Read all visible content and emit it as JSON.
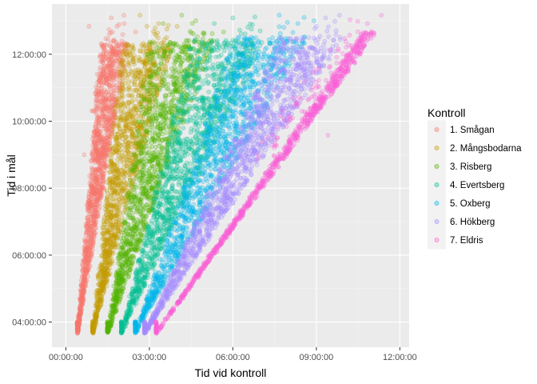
{
  "chart_data": {
    "type": "scatter",
    "xlabel": "Tid vid kontroll",
    "ylabel": "Tid i mål",
    "xlim": [
      "-00:30:00",
      "12:20:00"
    ],
    "ylim": [
      "03:15:00",
      "13:30:00"
    ],
    "x_ticks": [
      "00:00:00",
      "03:00:00",
      "06:00:00",
      "09:00:00",
      "12:00:00"
    ],
    "y_ticks": [
      "04:00:00",
      "06:00:00",
      "08:00:00",
      "10:00:00",
      "12:00:00"
    ],
    "grid": true,
    "point_alpha": 0.25,
    "legend": {
      "title": "Kontroll",
      "position": "right"
    },
    "series": [
      {
        "name": "1. Smågan",
        "color": "#F8766D",
        "start_x": "00:25:00",
        "start_y": "03:40:00",
        "lower_end_x": "01:15:00",
        "upper_end_x": "02:15:00",
        "end_y": "12:20:00",
        "outliers": [
          [
            "01:38:00",
            "13:05:00"
          ],
          [
            "01:50:00",
            "12:50:00"
          ],
          [
            "02:05:00",
            "13:10:00"
          ],
          [
            "02:30:00",
            "12:40:00"
          ],
          [
            "00:50:00",
            "12:50:00"
          ]
        ]
      },
      {
        "name": "2. Mångsbodarna",
        "color": "#C49A00",
        "start_x": "00:58:00",
        "start_y": "03:40:00",
        "lower_end_x": "02:00:00",
        "upper_end_x": "03:50:00",
        "end_y": "12:20:00",
        "outliers": [
          [
            "02:40:00",
            "13:10:00"
          ],
          [
            "03:20:00",
            "12:55:00"
          ],
          [
            "04:00:00",
            "12:50:00"
          ],
          [
            "02:55:00",
            "12:50:00"
          ]
        ]
      },
      {
        "name": "3. Risberg",
        "color": "#53B400",
        "start_x": "01:30:00",
        "start_y": "03:40:00",
        "lower_end_x": "03:00:00",
        "upper_end_x": "05:20:00",
        "end_y": "12:25:00",
        "outliers": [
          [
            "04:10:00",
            "13:10:00"
          ],
          [
            "04:40:00",
            "13:00:00"
          ],
          [
            "05:40:00",
            "12:40:00"
          ],
          [
            "03:30:00",
            "12:55:00"
          ]
        ]
      },
      {
        "name": "4. Evertsberg",
        "color": "#00C094",
        "start_x": "02:00:00",
        "start_y": "03:40:00",
        "lower_end_x": "04:30:00",
        "upper_end_x": "07:10:00",
        "end_y": "12:25:00",
        "outliers": [
          [
            "06:00:00",
            "13:05:00"
          ],
          [
            "06:40:00",
            "12:45:00"
          ],
          [
            "07:20:00",
            "12:20:00"
          ],
          [
            "05:20:00",
            "12:55:00"
          ]
        ]
      },
      {
        "name": "5. Oxberg",
        "color": "#00B6EB",
        "start_x": "02:30:00",
        "start_y": "03:40:00",
        "lower_end_x": "06:00:00",
        "upper_end_x": "08:40:00",
        "end_y": "12:30:00",
        "outliers": [
          [
            "07:40:00",
            "13:10:00"
          ],
          [
            "08:20:00",
            "12:55:00"
          ],
          [
            "08:55:00",
            "13:00:00"
          ]
        ]
      },
      {
        "name": "6. Hökberg",
        "color": "#A58AFF",
        "start_x": "02:50:00",
        "start_y": "03:40:00",
        "lower_end_x": "07:40:00",
        "upper_end_x": "10:00:00",
        "end_y": "12:30:00",
        "outliers": [
          [
            "09:20:00",
            "13:05:00"
          ],
          [
            "09:50:00",
            "13:10:00"
          ],
          [
            "09:00:00",
            "12:50:00"
          ]
        ]
      },
      {
        "name": "7. Eldris",
        "color": "#FB61D7",
        "start_x": "03:15:00",
        "start_y": "03:40:00",
        "lower_end_x": "10:40:00",
        "upper_end_x": "11:10:00",
        "end_y": "12:40:00",
        "outliers": [
          [
            "11:20:00",
            "13:10:00"
          ],
          [
            "09:25:00",
            "09:35:00"
          ],
          [
            "10:50:00",
            "12:55:00"
          ]
        ]
      }
    ]
  }
}
